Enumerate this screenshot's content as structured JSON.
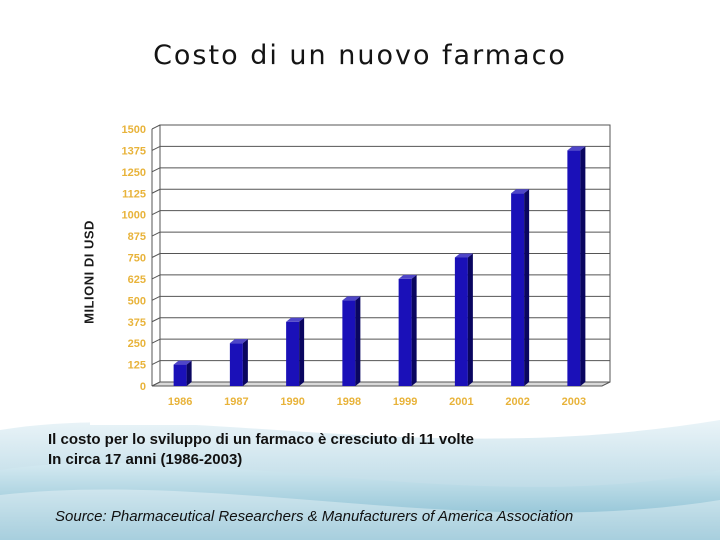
{
  "slide": {
    "title": "Costo di un nuovo farmaco",
    "caption_line1": "Il costo per lo sviluppo di un farmaco è cresciuto di 11 volte",
    "caption_line2": "In circa 17 anni (1986-2003)",
    "source": "Source: Pharmaceutical Researchers & Manufacturers of America Association"
  },
  "colors": {
    "bar_front": "#1a10b8",
    "bar_top": "#4f46c8",
    "bar_side": "#0a0660",
    "tick_label": "#e8b33a",
    "grid": "#555555",
    "plot_panel": "#ffffff"
  },
  "chart_data": {
    "type": "bar",
    "title": "Costo di un nuovo farmaco",
    "ylabel": "MILIONI DI USD",
    "xlabel": "",
    "categories": [
      "1986",
      "1987",
      "1990",
      "1998",
      "1999",
      "2001",
      "2002",
      "2003"
    ],
    "values": [
      125,
      250,
      375,
      500,
      625,
      750,
      1125,
      1375
    ],
    "ylim": [
      0,
      1500
    ],
    "yticks": [
      0,
      125,
      250,
      375,
      500,
      625,
      750,
      875,
      1000,
      1125,
      1250,
      1375,
      1500
    ],
    "grid": true,
    "style": "3d-column"
  }
}
